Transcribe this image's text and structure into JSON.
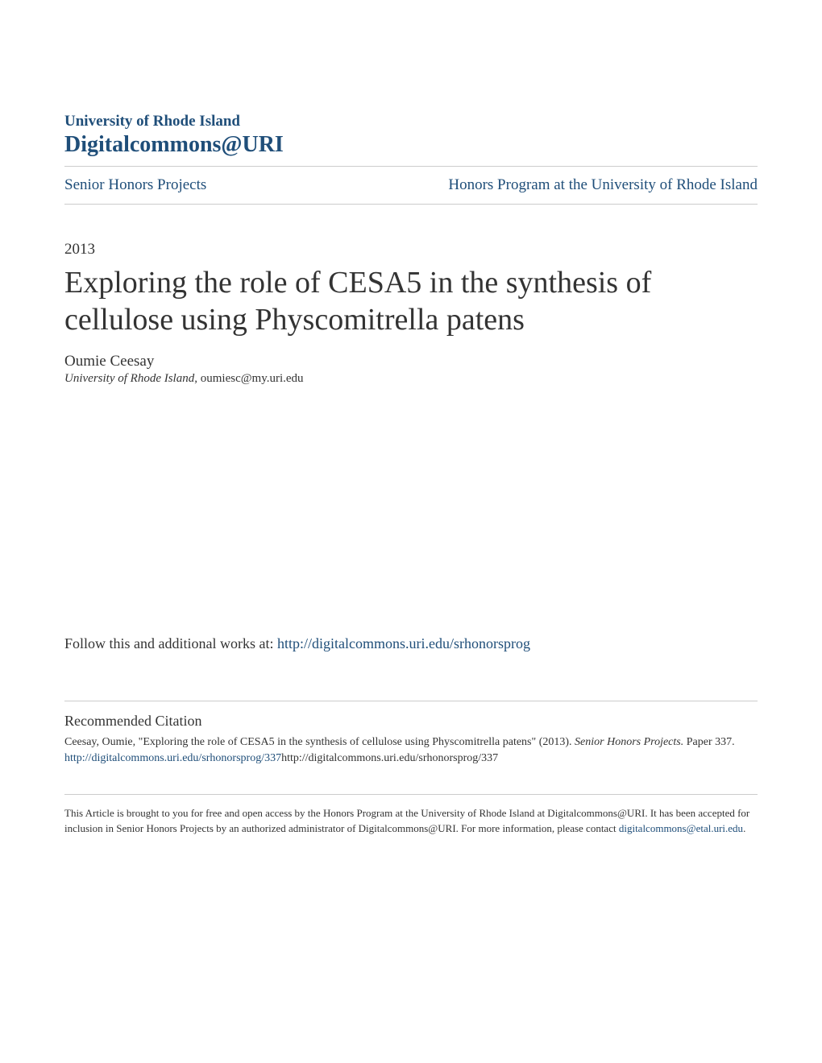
{
  "header": {
    "university": "University of Rhode Island",
    "site_name": "Digitalcommons@URI"
  },
  "nav": {
    "left_link": "Senior Honors Projects",
    "right_link": "Honors Program at the University of Rhode Island"
  },
  "year": "2013",
  "title": "Exploring the role of CESA5 in the synthesis of cellulose using Physcomitrella patens",
  "author": "Oumie Ceesay",
  "affiliation_institution": "University of Rhode Island",
  "affiliation_email": ", oumiesc@my.uri.edu",
  "follow_text": "Follow this and additional works at: ",
  "follow_url": "http://digitalcommons.uri.edu/srhonorsprog",
  "citation": {
    "heading": "Recommended Citation",
    "text_part1": "Ceesay, Oumie, \"Exploring the role of CESA5 in the synthesis of cellulose using Physcomitrella patens\" (2013). ",
    "text_italic": "Senior Honors Projects.",
    "text_part2": " Paper 337.",
    "link_text": "http://digitalcommons.uri.edu/srhonorsprog/337",
    "link_after": "http://digitalcommons.uri.edu/srhonorsprog/337"
  },
  "footer": {
    "text": "This Article is brought to you for free and open access by the Honors Program at the University of Rhode Island at Digitalcommons@URI. It has been accepted for inclusion in Senior Honors Projects by an authorized administrator of Digitalcommons@URI. For more information, please contact ",
    "link_text": "digitalcommons@etal.uri.edu",
    "text_after": "."
  },
  "colors": {
    "link_color": "#1f4e79",
    "text_color": "#333333",
    "divider_color": "#cccccc",
    "background": "#ffffff"
  },
  "typography": {
    "university_fontsize": 19,
    "sitename_fontsize": 28,
    "nav_fontsize": 19,
    "year_fontsize": 19,
    "title_fontsize": 38,
    "author_fontsize": 19,
    "affiliation_fontsize": 15,
    "follow_fontsize": 18,
    "citation_heading_fontsize": 18,
    "citation_text_fontsize": 14,
    "footer_fontsize": 13
  }
}
